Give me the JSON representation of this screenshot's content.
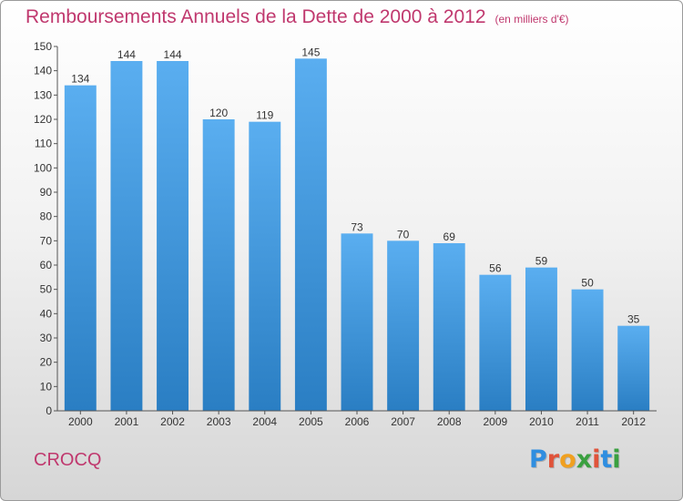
{
  "title": "Remboursements Annuels de la Dette de 2000 à 2012",
  "unit": "(en milliers d'€)",
  "commune": "CROCQ",
  "logo": {
    "text": "Proxiti",
    "colors": [
      "#2f8ee0",
      "#e0533a",
      "#f0a020",
      "#3aa040",
      "#e0533a",
      "#2f8ee0",
      "#3aa040"
    ]
  },
  "colors": {
    "title": "#c0386e",
    "bar_light": "#5aaef0",
    "bar_dark": "#2a7ec3"
  },
  "chart_data": {
    "type": "bar",
    "title": "Remboursements Annuels de la Dette de 2000 à 2012",
    "categories": [
      "2000",
      "2001",
      "2002",
      "2003",
      "2004",
      "2005",
      "2006",
      "2007",
      "2008",
      "2009",
      "2010",
      "2011",
      "2012"
    ],
    "values": [
      134,
      144,
      144,
      120,
      119,
      145,
      73,
      70,
      69,
      56,
      59,
      50,
      35
    ],
    "ylim": [
      0,
      150
    ],
    "yticks": [
      0,
      10,
      20,
      30,
      40,
      50,
      60,
      70,
      80,
      90,
      100,
      110,
      120,
      130,
      140,
      150
    ],
    "grid": false,
    "data_labels": true
  }
}
